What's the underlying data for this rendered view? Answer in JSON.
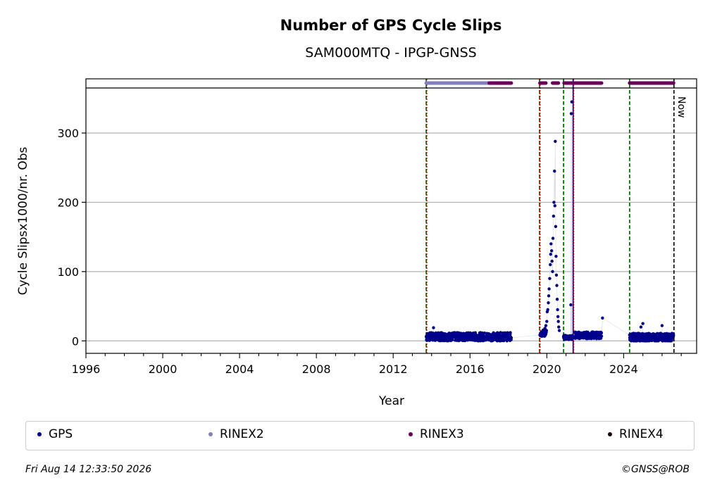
{
  "chart_data": {
    "type": "scatter",
    "title": "Number of GPS Cycle Slips",
    "subtitle": "SAM000MTQ - IPGP-GNSS",
    "xlabel": "Year",
    "ylabel": "Cycle Slipsx1000/nr. Obs",
    "xlim": [
      1996,
      2027.8
    ],
    "ylim": [
      -18,
      365
    ],
    "xticks": [
      1996,
      2000,
      2004,
      2008,
      2012,
      2016,
      2020,
      2024
    ],
    "yticks": [
      0,
      100,
      200,
      300
    ],
    "grid": "horizontal",
    "now_label": "Now",
    "now_year": 2026.62,
    "vertical_lines": [
      {
        "year": 2013.72,
        "color": "#007700",
        "style": "dashed"
      },
      {
        "year": 2013.74,
        "color": "#cc0000",
        "style": "dotted"
      },
      {
        "year": 2019.62,
        "color": "#007700",
        "style": "dashed"
      },
      {
        "year": 2019.64,
        "color": "#cc0000",
        "style": "dotted"
      },
      {
        "year": 2020.87,
        "color": "#007700",
        "style": "dashed"
      },
      {
        "year": 2021.37,
        "color": "#0000cc",
        "style": "solid"
      },
      {
        "year": 2021.39,
        "color": "#cc0000",
        "style": "dotted"
      },
      {
        "year": 2024.31,
        "color": "#007700",
        "style": "dashed"
      }
    ],
    "series": [
      {
        "name": "GPS",
        "color": "#00008b",
        "segments": [
          {
            "start": 2013.72,
            "end": 2018.15,
            "base": 6,
            "spread": 6
          },
          {
            "start": 2019.64,
            "end": 2019.98,
            "base": 11,
            "spread": 5
          },
          {
            "start": 2020.87,
            "end": 2021.35,
            "base": 5,
            "spread": 3
          },
          {
            "start": 2021.45,
            "end": 2022.85,
            "base": 8,
            "spread": 5
          },
          {
            "start": 2024.31,
            "end": 2026.6,
            "base": 5,
            "spread": 6
          }
        ],
        "spikes": [
          {
            "x": 2019.9,
            "y": 18
          },
          {
            "x": 2019.95,
            "y": 22
          },
          {
            "x": 2020.0,
            "y": 28
          },
          {
            "x": 2020.02,
            "y": 42
          },
          {
            "x": 2020.05,
            "y": 45
          },
          {
            "x": 2020.08,
            "y": 55
          },
          {
            "x": 2020.1,
            "y": 65
          },
          {
            "x": 2020.12,
            "y": 75
          },
          {
            "x": 2020.15,
            "y": 90
          },
          {
            "x": 2020.18,
            "y": 110
          },
          {
            "x": 2020.2,
            "y": 125
          },
          {
            "x": 2020.22,
            "y": 140
          },
          {
            "x": 2020.25,
            "y": 130
          },
          {
            "x": 2020.27,
            "y": 115
          },
          {
            "x": 2020.3,
            "y": 100
          },
          {
            "x": 2020.32,
            "y": 148
          },
          {
            "x": 2020.35,
            "y": 180
          },
          {
            "x": 2020.37,
            "y": 200
          },
          {
            "x": 2020.4,
            "y": 245
          },
          {
            "x": 2020.42,
            "y": 195
          },
          {
            "x": 2020.44,
            "y": 288
          },
          {
            "x": 2020.46,
            "y": 165
          },
          {
            "x": 2020.48,
            "y": 122
          },
          {
            "x": 2020.5,
            "y": 95
          },
          {
            "x": 2020.52,
            "y": 80
          },
          {
            "x": 2020.54,
            "y": 60
          },
          {
            "x": 2020.56,
            "y": 45
          },
          {
            "x": 2020.58,
            "y": 35
          },
          {
            "x": 2020.6,
            "y": 28
          },
          {
            "x": 2020.62,
            "y": 20
          },
          {
            "x": 2020.65,
            "y": 15
          },
          {
            "x": 2021.25,
            "y": 52
          },
          {
            "x": 2021.27,
            "y": 328
          },
          {
            "x": 2021.3,
            "y": 345
          },
          {
            "x": 2022.9,
            "y": 33
          },
          {
            "x": 2026.0,
            "y": 22
          },
          {
            "x": 2025.0,
            "y": 25
          },
          {
            "x": 2024.9,
            "y": 20
          },
          {
            "x": 2014.1,
            "y": 19
          }
        ]
      },
      {
        "name": "RINEX2",
        "color": "#8080c0",
        "band": [
          [
            2013.72,
            2017.0
          ]
        ]
      },
      {
        "name": "RINEX3",
        "color": "#6b005b",
        "band": [
          [
            2017.0,
            2018.15
          ],
          [
            2019.64,
            2019.95
          ],
          [
            2020.3,
            2020.6
          ],
          [
            2020.9,
            2022.85
          ],
          [
            2024.31,
            2026.6
          ]
        ]
      },
      {
        "name": "RINEX4",
        "color": "#1a0010",
        "band": []
      }
    ]
  },
  "legend": {
    "items": [
      {
        "label": "GPS",
        "color": "#00008b"
      },
      {
        "label": "RINEX2",
        "color": "#8080c0"
      },
      {
        "label": "RINEX3",
        "color": "#6b005b"
      },
      {
        "label": "RINEX4",
        "color": "#1a0010"
      }
    ]
  },
  "footer": {
    "timestamp": "Fri Aug 14 12:33:50 2026",
    "copyright": "©GNSS@ROB"
  }
}
